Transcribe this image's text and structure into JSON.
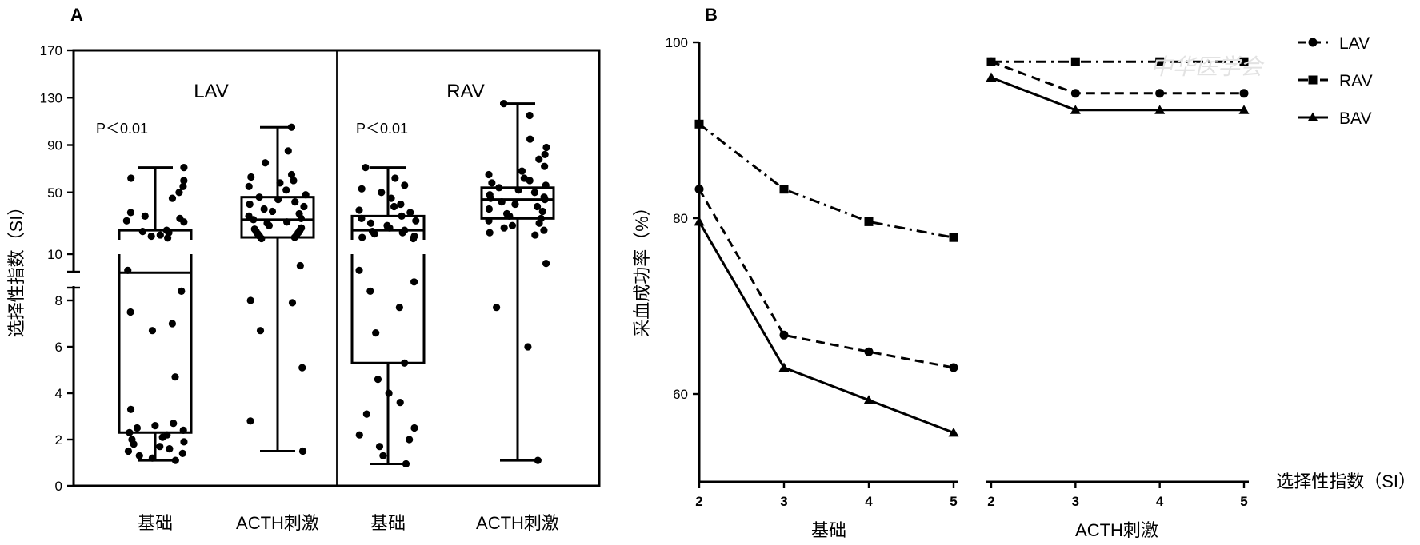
{
  "panels": {
    "a": {
      "letter": "A",
      "ylabel": "选择性指数（SI）",
      "groups": [
        "LAV",
        "RAV"
      ],
      "pvalues": [
        "P＜0.01",
        "P＜0.01"
      ],
      "categories": [
        "基础",
        "ACTH刺激",
        "基础",
        "ACTH刺激"
      ]
    },
    "b": {
      "letter": "B",
      "ylabel": "采血成功率（%）",
      "xlabel_right": "选择性指数（SI）",
      "group_labels": [
        "基础",
        "ACTH刺激"
      ]
    }
  },
  "watermark": "中华医学会",
  "colors": {
    "ink": "#000000",
    "background": "#ffffff"
  },
  "chart_data": [
    {
      "type": "box",
      "title": "A",
      "ylabel": "选择性指数（SI）",
      "y_axis": {
        "broken": true,
        "lower_segment": {
          "ylim": [
            0,
            10
          ],
          "ticks": [
            0,
            2,
            4,
            6,
            8
          ]
        },
        "upper_segment": {
          "ylim": [
            10,
            170
          ],
          "ticks": [
            10,
            50,
            90,
            130,
            170
          ]
        }
      },
      "groups": [
        {
          "name": "LAV",
          "pvalue": "P＜0.01",
          "boxes": [
            {
              "category": "基础",
              "min": 1.1,
              "q1": 2.3,
              "median": 9.2,
              "q3": 18,
              "max": 71,
              "points": [
                1.1,
                1.2,
                1.3,
                1.4,
                1.5,
                1.6,
                1.7,
                1.8,
                1.9,
                2.0,
                2.1,
                2.2,
                2.3,
                2.4,
                2.5,
                2.6,
                2.7,
                3.3,
                4.7,
                6.7,
                7.0,
                7.5,
                8.4,
                9.3,
                11.5,
                13,
                14,
                16,
                17,
                18,
                25,
                26,
                28,
                30,
                33,
                45,
                50,
                55,
                60,
                62,
                71
              ]
            },
            {
              "category": "ACTH刺激",
              "min": 1.5,
              "q1": 12,
              "median": 27,
              "q3": 46,
              "max": 105,
              "points": [
                1.5,
                2.8,
                5.1,
                6.7,
                7.9,
                8.0,
                9.5,
                11,
                12,
                13,
                14,
                15,
                16,
                17,
                18,
                19,
                20,
                22,
                24,
                25,
                27,
                28,
                30,
                32,
                34,
                36,
                38,
                40,
                42,
                44,
                46,
                48,
                52,
                55,
                58,
                60,
                63,
                65,
                75,
                85,
                105
              ]
            }
          ]
        },
        {
          "name": "RAV",
          "pvalue": "P＜0.01",
          "boxes": [
            {
              "category": "基础",
              "min": 0.95,
              "q1": 5.3,
              "median": 18,
              "q3": 30,
              "max": 71,
              "points": [
                0.95,
                1.3,
                1.7,
                2.0,
                2.2,
                2.5,
                3.1,
                3.6,
                4.0,
                4.6,
                5.3,
                6.6,
                7.7,
                8.4,
                8.8,
                9.3,
                11,
                12,
                13,
                15,
                16,
                17,
                18,
                20,
                21,
                22,
                24,
                26,
                28,
                30,
                33,
                35,
                38,
                40,
                45,
                50,
                53,
                56,
                62,
                71
              ]
            },
            {
              "category": "ACTH刺激",
              "min": 1.1,
              "q1": 28,
              "median": 44,
              "q3": 54,
              "max": 125,
              "points": [
                1.1,
                6.0,
                7.7,
                9.6,
                14,
                16,
                18,
                20,
                22,
                24,
                26,
                28,
                30,
                32,
                34,
                36,
                38,
                40,
                42,
                44,
                45,
                46,
                48,
                50,
                52,
                54,
                56,
                58,
                60,
                62,
                65,
                68,
                72,
                78,
                82,
                88,
                95,
                115,
                125
              ]
            }
          ]
        }
      ],
      "categories": [
        "基础",
        "ACTH刺激",
        "基础",
        "ACTH刺激"
      ]
    },
    {
      "type": "line",
      "title": "B",
      "ylabel": "采血成功率（%）",
      "xlabel": "选择性指数（SI）",
      "ylim": [
        50,
        100
      ],
      "yticks": [
        60,
        80,
        100
      ],
      "panels": [
        {
          "name": "基础",
          "x": [
            2,
            3,
            4,
            5
          ],
          "series": [
            {
              "name": "LAV",
              "marker": "circle",
              "linestyle": "dashed",
              "values": [
                83.3,
                66.7,
                64.8,
                63.0
              ]
            },
            {
              "name": "RAV",
              "marker": "square",
              "linestyle": "dashdot",
              "values": [
                90.7,
                83.3,
                79.6,
                77.8
              ]
            },
            {
              "name": "BAV",
              "marker": "triangle",
              "linestyle": "solid",
              "values": [
                79.6,
                63.0,
                59.3,
                55.6
              ]
            }
          ]
        },
        {
          "name": "ACTH刺激",
          "x": [
            2,
            3,
            4,
            5
          ],
          "series": [
            {
              "name": "LAV",
              "marker": "circle",
              "linestyle": "dashed",
              "values": [
                97.8,
                94.2,
                94.2,
                94.2
              ]
            },
            {
              "name": "RAV",
              "marker": "square",
              "linestyle": "dashdot",
              "values": [
                97.8,
                97.8,
                97.8,
                97.8
              ]
            },
            {
              "name": "BAV",
              "marker": "triangle",
              "linestyle": "solid",
              "values": [
                96.0,
                92.3,
                92.3,
                92.3
              ]
            }
          ]
        }
      ],
      "legend": [
        "LAV",
        "RAV",
        "BAV"
      ],
      "legend_position": "top-right"
    }
  ]
}
